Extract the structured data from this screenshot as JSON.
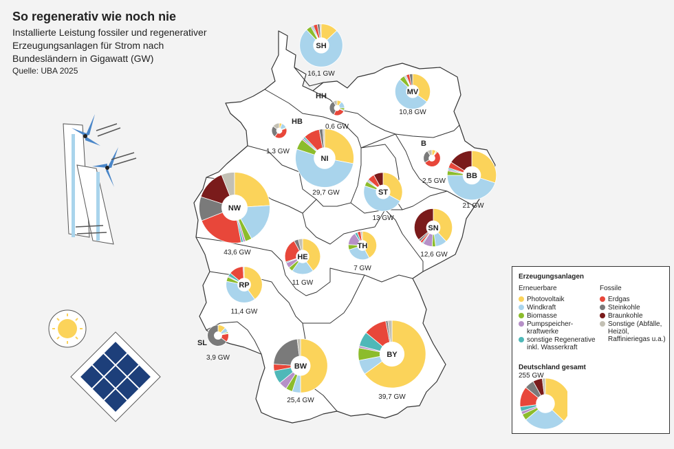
{
  "header": {
    "title": "So regenerativ wie noch nie",
    "subtitle": "Installierte Leistung fossiler und regenerativer Erzeugungsanlagen für Strom nach Bundesländern in Gigawatt (GW)",
    "source": "Quelle: UBA 2025"
  },
  "colors": {
    "pv": "#fbd35a",
    "wind": "#a9d4ec",
    "bio": "#8cbc2c",
    "pump": "#b690c7",
    "other_re": "#4fb8b8",
    "gas": "#e8473a",
    "coal": "#7a7a7a",
    "lignite": "#7a1b1b",
    "other_fossil": "#c3c0b4"
  },
  "legend": {
    "title": "Erzeugungsanlagen",
    "renewables_title": "Erneuerbare",
    "fossil_title": "Fossile",
    "renewables": [
      {
        "label": "Photovoltaik",
        "color": "#fbd35a"
      },
      {
        "label": "Windkraft",
        "color": "#a9d4ec"
      },
      {
        "label": "Biomasse",
        "color": "#8cbc2c"
      },
      {
        "label": "Pumpspeicher-kraftwerke",
        "color": "#b690c7"
      },
      {
        "label": "sonstige Regenerative inkl. Wasserkraft",
        "color": "#4fb8b8"
      }
    ],
    "fossil": [
      {
        "label": "Erdgas",
        "color": "#e8473a"
      },
      {
        "label": "Steinkohle",
        "color": "#7a7a7a"
      },
      {
        "label": "Braunkohle",
        "color": "#7a1b1b"
      },
      {
        "label": "Sonstige (Abfälle, Heizöl, Raffinieriegas u.a.)",
        "color": "#c3c0b4"
      }
    ],
    "total_title": "Deutschland gesamt",
    "total_value": "255 GW"
  },
  "chart_data": {
    "type": "pie",
    "unit": "GW",
    "categories": [
      "Photovoltaik",
      "Windkraft",
      "Biomasse",
      "Pumpspeicherkraftwerke",
      "sonstige Regenerative",
      "Erdgas",
      "Steinkohle",
      "Braunkohle",
      "Sonstige fossil"
    ],
    "states": [
      {
        "code": "SH",
        "total": 16.1,
        "label": "16,1 GW",
        "shares": [
          0.13,
          0.75,
          0.04,
          0.01,
          0.01,
          0.03,
          0.02,
          0,
          0.01
        ]
      },
      {
        "code": "HH",
        "total": 0.6,
        "label": "0,6 GW",
        "shares": [
          0.1,
          0.15,
          0.05,
          0,
          0.02,
          0.25,
          0.35,
          0,
          0.08
        ]
      },
      {
        "code": "MV",
        "total": 10.8,
        "label": "10,8 GW",
        "shares": [
          0.35,
          0.52,
          0.05,
          0.01,
          0.01,
          0.03,
          0.03,
          0,
          0
        ]
      },
      {
        "code": "HB",
        "total": 1.3,
        "label": "1,3 GW",
        "shares": [
          0.06,
          0.12,
          0.02,
          0,
          0,
          0.4,
          0.25,
          0,
          0.15
        ]
      },
      {
        "code": "NI",
        "total": 29.7,
        "label": "29,7 GW",
        "shares": [
          0.28,
          0.52,
          0.06,
          0.01,
          0.01,
          0.09,
          0.02,
          0,
          0.01
        ]
      },
      {
        "code": "B",
        "total": 2.5,
        "label": "2,5 GW",
        "shares": [
          0.08,
          0.01,
          0.02,
          0,
          0,
          0.55,
          0.25,
          0,
          0.09
        ]
      },
      {
        "code": "BB",
        "total": 21,
        "label": "21 GW",
        "shares": [
          0.3,
          0.45,
          0.03,
          0.01,
          0.01,
          0.04,
          0,
          0.16,
          0
        ]
      },
      {
        "code": "ST",
        "total": 13,
        "label": "13 GW",
        "shares": [
          0.33,
          0.47,
          0.04,
          0.01,
          0.01,
          0.06,
          0,
          0.08,
          0
        ]
      },
      {
        "code": "NW",
        "total": 43.6,
        "label": "43,6 GW",
        "shares": [
          0.24,
          0.18,
          0.03,
          0.01,
          0.01,
          0.22,
          0.11,
          0.14,
          0.06
        ]
      },
      {
        "code": "SN",
        "total": 12.6,
        "label": "12,6 GW",
        "shares": [
          0.38,
          0.1,
          0.03,
          0.08,
          0.01,
          0.02,
          0.02,
          0.36,
          0
        ]
      },
      {
        "code": "HE",
        "total": 11,
        "label": "11 GW",
        "shares": [
          0.4,
          0.2,
          0.04,
          0.05,
          0.01,
          0.22,
          0.04,
          0,
          0.04
        ]
      },
      {
        "code": "TH",
        "total": 7,
        "label": "7 GW",
        "shares": [
          0.42,
          0.28,
          0.06,
          0.15,
          0.03,
          0.04,
          0,
          0,
          0.02
        ]
      },
      {
        "code": "RP",
        "total": 11.4,
        "label": "11,4 GW",
        "shares": [
          0.4,
          0.38,
          0.04,
          0.01,
          0.03,
          0.13,
          0,
          0,
          0.01
        ]
      },
      {
        "code": "SL",
        "total": 3.9,
        "label": "3,9 GW",
        "shares": [
          0.12,
          0.07,
          0.02,
          0,
          0.01,
          0.13,
          0.65,
          0,
          0
        ]
      },
      {
        "code": "BW",
        "total": 25.4,
        "label": "25,4 GW",
        "shares": [
          0.5,
          0.05,
          0.04,
          0.05,
          0.08,
          0.04,
          0.22,
          0,
          0.02
        ]
      },
      {
        "code": "BY",
        "total": 39.7,
        "label": "39,7 GW",
        "shares": [
          0.65,
          0.07,
          0.06,
          0.01,
          0.07,
          0.11,
          0.01,
          0,
          0.02
        ]
      }
    ],
    "germany_total": {
      "total": 255,
      "label": "255 GW",
      "shares": [
        0.37,
        0.27,
        0.04,
        0.02,
        0.03,
        0.13,
        0.06,
        0.06,
        0.02
      ]
    }
  }
}
